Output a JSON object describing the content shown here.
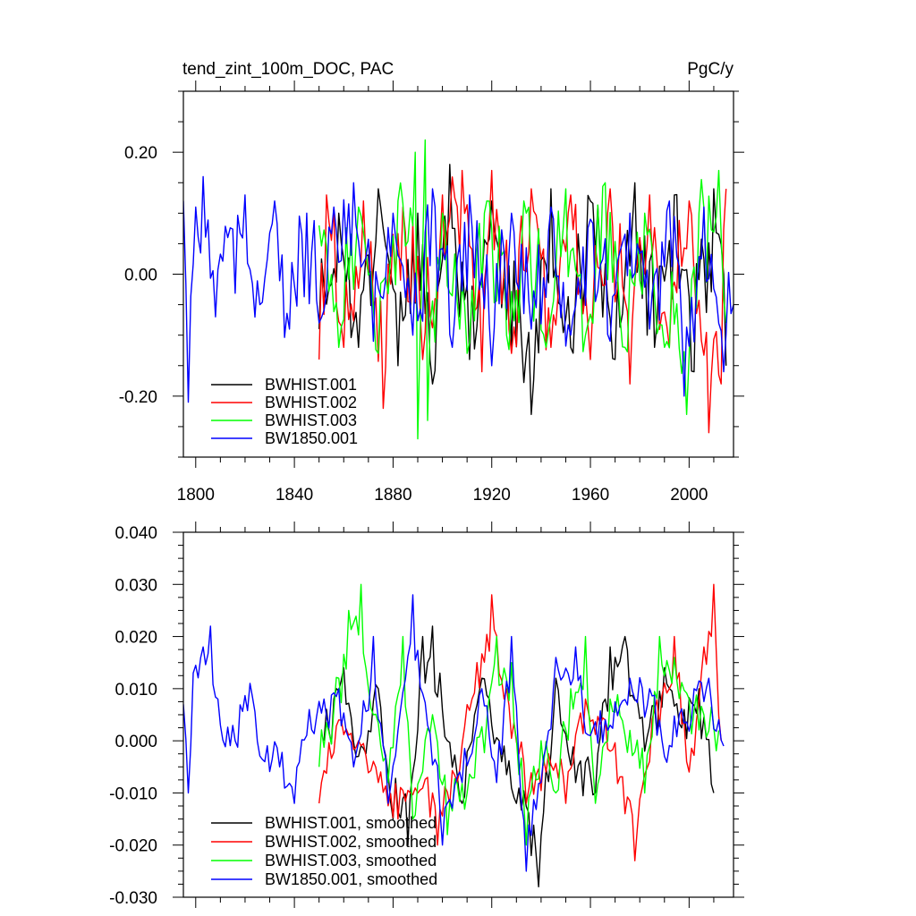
{
  "chart_data": [
    {
      "type": "line",
      "title": "tend_zint_100m_DOC, PAC",
      "units": "PgC/y",
      "xlim": [
        1795,
        2018
      ],
      "ylim": [
        -0.3,
        0.3
      ],
      "xticks": [
        1800,
        1840,
        1880,
        1920,
        1960,
        2000
      ],
      "xtick_labels": [
        "1800",
        "1840",
        "1880",
        "1920",
        "1960",
        "2000"
      ],
      "yticks": [
        -0.2,
        0.0,
        0.2
      ],
      "ytick_labels": [
        "-0.20",
        "0.00",
        "0.20"
      ],
      "legend_position": "bottom-left",
      "series": [
        {
          "name": "BWHIST.001",
          "color": "#000000",
          "start": 1850,
          "end": 2015,
          "keys": [
            [
              1850,
              -0.09
            ],
            [
              1858,
              0.1
            ],
            [
              1866,
              -0.12
            ],
            [
              1874,
              0.14
            ],
            [
              1882,
              -0.15
            ],
            [
              1890,
              0.1
            ],
            [
              1896,
              -0.18
            ],
            [
              1903,
              0.18
            ],
            [
              1911,
              -0.14
            ],
            [
              1920,
              0.12
            ],
            [
              1928,
              -0.12
            ],
            [
              1936,
              -0.23
            ],
            [
              1944,
              0.14
            ],
            [
              1952,
              -0.12
            ],
            [
              1960,
              0.12
            ],
            [
              1970,
              -0.14
            ],
            [
              1978,
              0.15
            ],
            [
              1986,
              -0.12
            ],
            [
              1994,
              0.13
            ],
            [
              2002,
              -0.16
            ],
            [
              2010,
              0.14
            ],
            [
              2015,
              -0.15
            ]
          ]
        },
        {
          "name": "BWHIST.002",
          "color": "#ff0000",
          "start": 1850,
          "end": 2015,
          "keys": [
            [
              1850,
              -0.14
            ],
            [
              1853,
              0.13
            ],
            [
              1860,
              -0.12
            ],
            [
              1868,
              0.12
            ],
            [
              1876,
              -0.22
            ],
            [
              1884,
              0.11
            ],
            [
              1892,
              -0.14
            ],
            [
              1900,
              0.13
            ],
            [
              1908,
              0.17
            ],
            [
              1916,
              -0.16
            ],
            [
              1920,
              0.17
            ],
            [
              1928,
              -0.13
            ],
            [
              1936,
              0.14
            ],
            [
              1944,
              -0.12
            ],
            [
              1952,
              0.13
            ],
            [
              1960,
              -0.14
            ],
            [
              1968,
              0.14
            ],
            [
              1976,
              -0.18
            ],
            [
              1984,
              0.13
            ],
            [
              1992,
              -0.12
            ],
            [
              2000,
              0.12
            ],
            [
              2008,
              -0.26
            ],
            [
              2013,
              -0.18
            ],
            [
              2015,
              0.14
            ]
          ]
        },
        {
          "name": "BWHIST.003",
          "color": "#00ff00",
          "start": 1850,
          "end": 2015,
          "keys": [
            [
              1850,
              0.08
            ],
            [
              1858,
              -0.12
            ],
            [
              1866,
              0.11
            ],
            [
              1874,
              -0.13
            ],
            [
              1882,
              0.12
            ],
            [
              1889,
              0.2
            ],
            [
              1890,
              -0.27
            ],
            [
              1893,
              0.22
            ],
            [
              1894,
              -0.24
            ],
            [
              1900,
              0.1
            ],
            [
              1910,
              -0.13
            ],
            [
              1918,
              0.12
            ],
            [
              1926,
              -0.1
            ],
            [
              1934,
              0.1
            ],
            [
              1942,
              -0.12
            ],
            [
              1950,
              0.14
            ],
            [
              1958,
              -0.1
            ],
            [
              1966,
              0.15
            ],
            [
              1974,
              -0.12
            ],
            [
              1982,
              0.1
            ],
            [
              1990,
              -0.12
            ],
            [
              1999,
              -0.23
            ],
            [
              2004,
              0.1
            ],
            [
              2012,
              0.17
            ],
            [
              2015,
              -0.08
            ]
          ]
        },
        {
          "name": "BW1850.001",
          "color": "#0000ff",
          "start": 1795,
          "end": 2018,
          "keys": [
            [
              1795,
              0.12
            ],
            [
              1797,
              -0.21
            ],
            [
              1800,
              0.11
            ],
            [
              1803,
              0.16
            ],
            [
              1808,
              -0.07
            ],
            [
              1813,
              0.06
            ],
            [
              1820,
              0.13
            ],
            [
              1826,
              -0.05
            ],
            [
              1832,
              0.12
            ],
            [
              1838,
              -0.09
            ],
            [
              1845,
              0.1
            ],
            [
              1850,
              -0.08
            ],
            [
              1856,
              0.11
            ],
            [
              1864,
              0.15
            ],
            [
              1872,
              -0.11
            ],
            [
              1880,
              0.1
            ],
            [
              1888,
              -0.1
            ],
            [
              1896,
              0.14
            ],
            [
              1904,
              -0.12
            ],
            [
              1911,
              0.13
            ],
            [
              1920,
              -0.15
            ],
            [
              1928,
              0.1
            ],
            [
              1936,
              -0.09
            ],
            [
              1944,
              0.11
            ],
            [
              1952,
              -0.1
            ],
            [
              1960,
              0.09
            ],
            [
              1968,
              -0.11
            ],
            [
              1976,
              0.1
            ],
            [
              1984,
              -0.09
            ],
            [
              1992,
              0.12
            ],
            [
              1998,
              -0.2
            ],
            [
              2006,
              0.11
            ],
            [
              2014,
              -0.16
            ],
            [
              2018,
              -0.05
            ]
          ]
        }
      ]
    },
    {
      "type": "line",
      "title": "",
      "units": "",
      "xlim": [
        1795,
        2018
      ],
      "ylim": [
        -0.03,
        0.04
      ],
      "xticks": [
        1800,
        1840,
        1880,
        1920,
        1960,
        2000
      ],
      "xtick_labels": [
        "",
        "",
        "",
        "",
        "",
        ""
      ],
      "yticks": [
        -0.03,
        -0.02,
        -0.01,
        0.0,
        0.01,
        0.02,
        0.03,
        0.04
      ],
      "ytick_labels": [
        "-0.030",
        "-0.020",
        "-0.010",
        "0.000",
        "0.010",
        "0.020",
        "0.030",
        "0.040"
      ],
      "legend_position": "bottom-left",
      "series": [
        {
          "name": "BWHIST.001, smoothed",
          "color": "#000000",
          "start": 1852,
          "end": 2010,
          "keys": [
            [
              1852,
              0.0
            ],
            [
              1860,
              0.014
            ],
            [
              1866,
              -0.003
            ],
            [
              1874,
              0.01
            ],
            [
              1880,
              -0.015
            ],
            [
              1886,
              -0.02
            ],
            [
              1892,
              0.02
            ],
            [
              1896,
              0.022
            ],
            [
              1902,
              0.0
            ],
            [
              1908,
              -0.012
            ],
            [
              1916,
              0.012
            ],
            [
              1924,
              -0.004
            ],
            [
              1930,
              -0.012
            ],
            [
              1936,
              -0.022
            ],
            [
              1939,
              -0.028
            ],
            [
              1946,
              0.012
            ],
            [
              1954,
              -0.008
            ],
            [
              1962,
              -0.01
            ],
            [
              1968,
              0.018
            ],
            [
              1974,
              0.02
            ],
            [
              1982,
              -0.002
            ],
            [
              1990,
              0.014
            ],
            [
              1998,
              0.006
            ],
            [
              2004,
              0.01
            ],
            [
              2010,
              -0.01
            ]
          ]
        },
        {
          "name": "BWHIST.002, smoothed",
          "color": "#ff0000",
          "start": 1850,
          "end": 2013,
          "keys": [
            [
              1850,
              -0.012
            ],
            [
              1858,
              0.004
            ],
            [
              1866,
              0.0
            ],
            [
              1874,
              -0.008
            ],
            [
              1882,
              -0.015
            ],
            [
              1890,
              -0.01
            ],
            [
              1898,
              -0.02
            ],
            [
              1906,
              -0.008
            ],
            [
              1914,
              0.015
            ],
            [
              1920,
              0.028
            ],
            [
              1926,
              0.01
            ],
            [
              1934,
              -0.012
            ],
            [
              1942,
              -0.006
            ],
            [
              1950,
              -0.012
            ],
            [
              1958,
              0.008
            ],
            [
              1966,
              0.004
            ],
            [
              1974,
              -0.014
            ],
            [
              1978,
              -0.023
            ],
            [
              1986,
              0.006
            ],
            [
              1994,
              0.02
            ],
            [
              2000,
              -0.006
            ],
            [
              2006,
              0.018
            ],
            [
              2010,
              0.03
            ],
            [
              2013,
              0.0
            ]
          ]
        },
        {
          "name": "BWHIST.003, smoothed",
          "color": "#00ff00",
          "start": 1850,
          "end": 2012,
          "keys": [
            [
              1850,
              -0.005
            ],
            [
              1858,
              0.012
            ],
            [
              1862,
              0.025
            ],
            [
              1867,
              0.03
            ],
            [
              1872,
              0.005
            ],
            [
              1878,
              -0.008
            ],
            [
              1884,
              0.02
            ],
            [
              1888,
              -0.015
            ],
            [
              1896,
              0.005
            ],
            [
              1902,
              -0.018
            ],
            [
              1910,
              -0.01
            ],
            [
              1918,
              0.004
            ],
            [
              1922,
              0.02
            ],
            [
              1928,
              0.015
            ],
            [
              1934,
              -0.02
            ],
            [
              1940,
              0.0
            ],
            [
              1946,
              -0.01
            ],
            [
              1952,
              0.01
            ],
            [
              1958,
              0.02
            ],
            [
              1962,
              -0.012
            ],
            [
              1968,
              0.008
            ],
            [
              1976,
              0.002
            ],
            [
              1982,
              -0.01
            ],
            [
              1988,
              0.02
            ],
            [
              1994,
              0.016
            ],
            [
              2000,
              0.008
            ],
            [
              2006,
              0.005
            ],
            [
              2012,
              0.002
            ]
          ]
        },
        {
          "name": "BW1850.001, smoothed",
          "color": "#0000ff",
          "start": 1795,
          "end": 2014,
          "keys": [
            [
              1795,
              0.007
            ],
            [
              1797,
              -0.01
            ],
            [
              1799,
              0.013
            ],
            [
              1803,
              0.018
            ],
            [
              1806,
              0.022
            ],
            [
              1810,
              0.003
            ],
            [
              1816,
              0.0
            ],
            [
              1822,
              0.011
            ],
            [
              1828,
              -0.004
            ],
            [
              1834,
              -0.005
            ],
            [
              1840,
              -0.012
            ],
            [
              1846,
              0.006
            ],
            [
              1852,
              0.008
            ],
            [
              1858,
              0.01
            ],
            [
              1864,
              -0.005
            ],
            [
              1872,
              0.02
            ],
            [
              1878,
              -0.012
            ],
            [
              1882,
              0.002
            ],
            [
              1888,
              0.028
            ],
            [
              1894,
              0.003
            ],
            [
              1900,
              -0.02
            ],
            [
              1908,
              -0.008
            ],
            [
              1916,
              0.01
            ],
            [
              1922,
              -0.008
            ],
            [
              1928,
              0.02
            ],
            [
              1934,
              -0.025
            ],
            [
              1940,
              -0.008
            ],
            [
              1946,
              0.016
            ],
            [
              1954,
              0.018
            ],
            [
              1960,
              0.001
            ],
            [
              1968,
              0.003
            ],
            [
              1976,
              0.012
            ],
            [
              1984,
              0.01
            ],
            [
              1990,
              -0.003
            ],
            [
              1996,
              0.005
            ],
            [
              2002,
              0.01
            ],
            [
              2008,
              0.012
            ],
            [
              2014,
              -0.001
            ]
          ]
        }
      ]
    }
  ]
}
